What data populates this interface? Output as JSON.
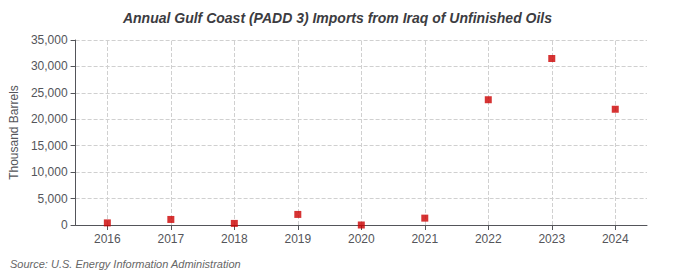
{
  "chart_data": {
    "type": "scatter",
    "title": "Annual Gulf Coast (PADD 3) Imports from Iraq of Unfinished Oils",
    "ylabel": "Thousand Barrels",
    "annotation": "Source: U.S. Energy Information Administration",
    "x": [
      2016,
      2017,
      2018,
      2019,
      2020,
      2021,
      2022,
      2023,
      2024
    ],
    "values": [
      400,
      1050,
      300,
      2000,
      0,
      1300,
      23700,
      31500,
      21900
    ],
    "color": "#cc0000",
    "marker": "square",
    "xlim": [
      2015.5,
      2024.5
    ],
    "xticks": [
      2016,
      2017,
      2018,
      2019,
      2020,
      2021,
      2022,
      2023,
      2024
    ],
    "ylim": [
      0,
      35000
    ],
    "yticks": [
      0,
      {
        "value": 5000,
        "label": "5,000"
      },
      {
        "value": 10000,
        "label": "10,000"
      },
      {
        "value": 15000,
        "label": "15,000"
      },
      {
        "value": 20000,
        "label": "20,000"
      },
      {
        "value": 25000,
        "label": "25,000"
      },
      {
        "value": 30000,
        "label": "30,000"
      },
      {
        "value": 35000,
        "label": "35,000"
      }
    ],
    "grid": true
  }
}
